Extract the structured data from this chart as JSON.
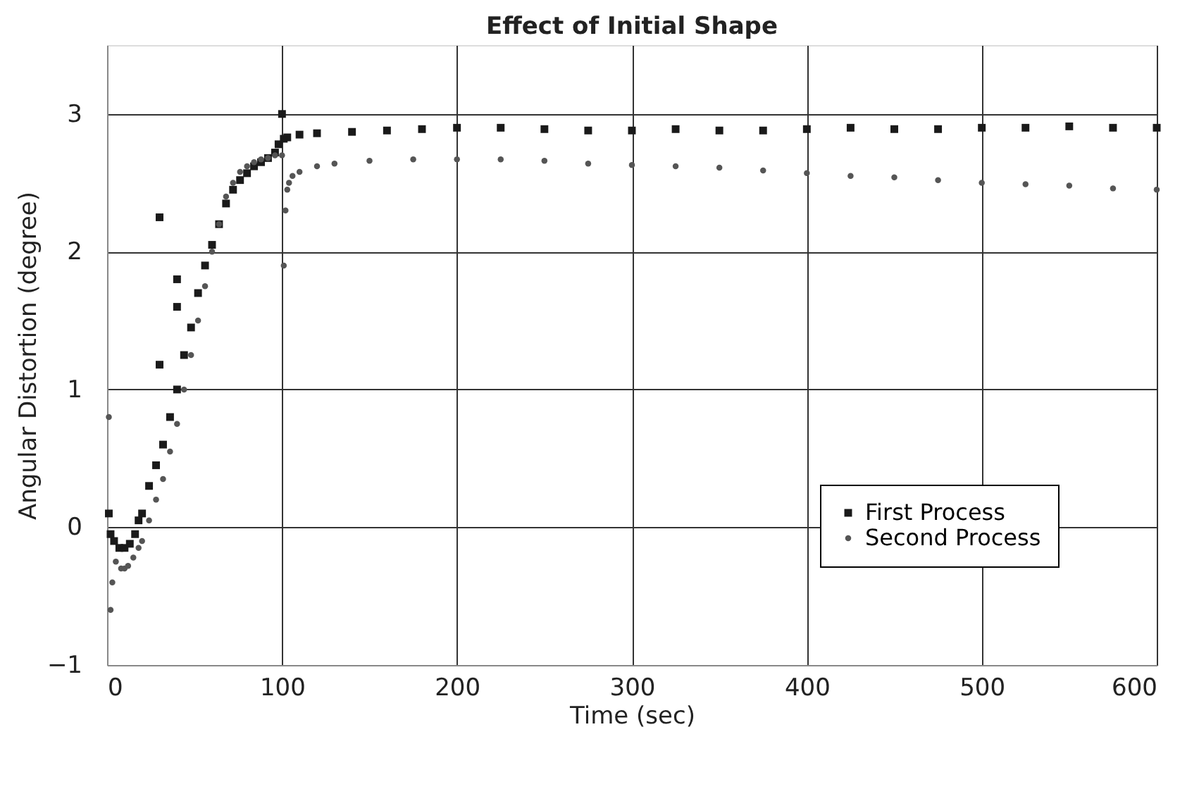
{
  "chart_data": {
    "type": "scatter",
    "title": "Effect of Initial Shape",
    "xlabel": "Time (sec)",
    "ylabel": "Angular Distortion (degree)",
    "xlim": [
      0,
      600
    ],
    "xticks": [
      0,
      100,
      200,
      300,
      400,
      500,
      600
    ],
    "ylim": [
      -1,
      3.5
    ],
    "yticks": [
      -1,
      0,
      1,
      2,
      3
    ],
    "grid": true,
    "legend": "bottom right",
    "series": [
      {
        "name": "First Process",
        "color": "#1a1a1a",
        "marker": "square",
        "x": [
          1,
          2,
          4,
          7,
          10,
          13,
          16,
          18,
          20,
          24,
          28,
          30,
          30,
          32,
          36,
          40,
          40,
          40,
          44,
          48,
          52,
          56,
          60,
          64,
          68,
          72,
          76,
          80,
          84,
          88,
          92,
          96,
          98,
          100,
          101,
          103,
          110,
          120,
          140,
          160,
          180,
          200,
          225,
          250,
          275,
          300,
          325,
          350,
          375,
          400,
          425,
          450,
          475,
          500,
          525,
          550,
          575,
          600
        ],
        "values": [
          0.1,
          -0.05,
          -0.1,
          -0.15,
          -0.15,
          -0.12,
          -0.05,
          0.05,
          0.1,
          0.3,
          0.45,
          2.25,
          1.18,
          0.6,
          0.8,
          1.0,
          1.8,
          1.6,
          1.25,
          1.45,
          1.7,
          1.9,
          2.05,
          2.2,
          2.35,
          2.45,
          2.52,
          2.57,
          2.62,
          2.65,
          2.68,
          2.72,
          2.78,
          3.0,
          2.82,
          2.83,
          2.85,
          2.86,
          2.87,
          2.88,
          2.89,
          2.9,
          2.9,
          2.89,
          2.88,
          2.88,
          2.89,
          2.88,
          2.88,
          2.89,
          2.9,
          2.89,
          2.89,
          2.9,
          2.9,
          2.91,
          2.9,
          2.9
        ]
      },
      {
        "name": "Second Process",
        "color": "#555555",
        "marker": "circle",
        "x": [
          1,
          2,
          3,
          5,
          8,
          10,
          12,
          15,
          18,
          20,
          24,
          28,
          32,
          36,
          40,
          44,
          48,
          52,
          56,
          60,
          64,
          68,
          72,
          76,
          80,
          84,
          88,
          92,
          96,
          100,
          101,
          102,
          103,
          104,
          106,
          110,
          120,
          130,
          150,
          175,
          200,
          225,
          250,
          275,
          300,
          325,
          350,
          375,
          400,
          425,
          450,
          475,
          500,
          525,
          550,
          575,
          600
        ],
        "values": [
          0.8,
          -0.6,
          -0.4,
          -0.25,
          -0.3,
          -0.3,
          -0.28,
          -0.22,
          -0.15,
          -0.1,
          0.05,
          0.2,
          0.35,
          0.55,
          0.75,
          1.0,
          1.25,
          1.5,
          1.75,
          2.0,
          2.2,
          2.4,
          2.5,
          2.58,
          2.62,
          2.65,
          2.67,
          2.68,
          2.7,
          2.7,
          1.9,
          2.3,
          2.45,
          2.5,
          2.55,
          2.58,
          2.62,
          2.64,
          2.66,
          2.67,
          2.67,
          2.67,
          2.66,
          2.64,
          2.63,
          2.62,
          2.61,
          2.59,
          2.57,
          2.55,
          2.54,
          2.52,
          2.5,
          2.49,
          2.48,
          2.46,
          2.45
        ]
      }
    ]
  }
}
